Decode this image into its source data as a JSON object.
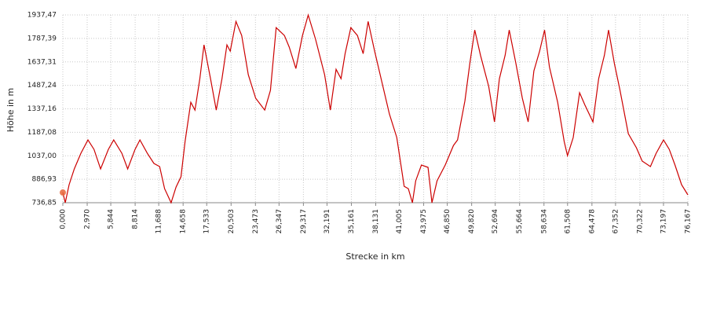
{
  "chart_data": {
    "type": "line",
    "xlabel": "Strecke  in  km",
    "ylabel": "Höhe  in  m",
    "grid": true,
    "xlim": [
      0,
      76.167
    ],
    "ylim": [
      736.85,
      1937.47
    ],
    "xticks": [
      {
        "value": 0,
        "label": "0,000"
      },
      {
        "value": 2.97,
        "label": "2,970"
      },
      {
        "value": 5.844,
        "label": "5,844"
      },
      {
        "value": 8.814,
        "label": "8,814"
      },
      {
        "value": 11.688,
        "label": "11,688"
      },
      {
        "value": 14.658,
        "label": "14,658"
      },
      {
        "value": 17.533,
        "label": "17,533"
      },
      {
        "value": 20.503,
        "label": "20,503"
      },
      {
        "value": 23.473,
        "label": "23,473"
      },
      {
        "value": 26.347,
        "label": "26,347"
      },
      {
        "value": 29.317,
        "label": "29,317"
      },
      {
        "value": 32.191,
        "label": "32,191"
      },
      {
        "value": 35.161,
        "label": "35,161"
      },
      {
        "value": 38.131,
        "label": "38,131"
      },
      {
        "value": 41.005,
        "label": "41,005"
      },
      {
        "value": 43.975,
        "label": "43,975"
      },
      {
        "value": 46.85,
        "label": "46,850"
      },
      {
        "value": 49.82,
        "label": "49,820"
      },
      {
        "value": 52.694,
        "label": "52,694"
      },
      {
        "value": 55.664,
        "label": "55,664"
      },
      {
        "value": 58.634,
        "label": "58,634"
      },
      {
        "value": 61.508,
        "label": "61,508"
      },
      {
        "value": 64.478,
        "label": "64,478"
      },
      {
        "value": 67.352,
        "label": "67,352"
      },
      {
        "value": 70.322,
        "label": "70,322"
      },
      {
        "value": 73.197,
        "label": "73,197"
      },
      {
        "value": 76.167,
        "label": "76,167"
      }
    ],
    "yticks": [
      {
        "value": 736.85,
        "label": "736,85"
      },
      {
        "value": 886.93,
        "label": "886,93"
      },
      {
        "value": 1037.0,
        "label": "1037,00"
      },
      {
        "value": 1187.08,
        "label": "1187,08"
      },
      {
        "value": 1337.16,
        "label": "1337,16"
      },
      {
        "value": 1487.24,
        "label": "1487,24"
      },
      {
        "value": 1637.31,
        "label": "1637,31"
      },
      {
        "value": 1787.39,
        "label": "1787,39"
      },
      {
        "value": 1937.47,
        "label": "1937,47"
      }
    ],
    "x": [
      0,
      0.3,
      0.77,
      1.4,
      2.2,
      3.06,
      3.8,
      4.6,
      5.55,
      6.2,
      7.2,
      7.9,
      8.8,
      9.4,
      10.3,
      11.1,
      11.8,
      12.4,
      13.2,
      13.8,
      14.4,
      14.9,
      15.6,
      16.1,
      16.7,
      17.2,
      18.0,
      18.7,
      19.4,
      20.0,
      20.4,
      21.1,
      21.8,
      22.6,
      23.5,
      24.6,
      25.3,
      26.0,
      27.0,
      27.6,
      28.4,
      29.2,
      29.9,
      30.8,
      31.9,
      32.6,
      33.3,
      33.9,
      34.4,
      35.1,
      35.9,
      36.6,
      37.2,
      38.0,
      38.9,
      39.8,
      40.7,
      41.6,
      42.1,
      42.6,
      43.0,
      43.7,
      44.5,
      44.98,
      45.6,
      46.6,
      47.6,
      48.1,
      49.0,
      49.6,
      50.2,
      50.9,
      51.9,
      52.6,
      53.2,
      53.9,
      54.4,
      55.2,
      56.0,
      56.7,
      57.4,
      58.1,
      58.7,
      59.3,
      60.3,
      61.1,
      61.5,
      62.2,
      62.97,
      63.6,
      64.6,
      65.3,
      66.0,
      66.5,
      67.2,
      67.9,
      68.9,
      69.9,
      70.6,
      71.6,
      72.3,
      73.2,
      73.9,
      74.6,
      75.4,
      76.167
    ],
    "series": [
      {
        "name": "Höhe",
        "color": "#cc0000",
        "values": [
          802,
          737,
          852,
          953,
          1053,
          1138,
          1078,
          953,
          1078,
          1138,
          1053,
          953,
          1078,
          1138,
          1053,
          988,
          968,
          827,
          737,
          837,
          903,
          1128,
          1379,
          1329,
          1530,
          1746,
          1530,
          1329,
          1530,
          1746,
          1706,
          1896,
          1806,
          1555,
          1405,
          1329,
          1455,
          1856,
          1806,
          1731,
          1595,
          1806,
          1937,
          1781,
          1555,
          1329,
          1590,
          1530,
          1690,
          1856,
          1806,
          1690,
          1896,
          1706,
          1505,
          1304,
          1154,
          842,
          827,
          737,
          877,
          978,
          963,
          737,
          877,
          978,
          1103,
          1138,
          1389,
          1630,
          1841,
          1680,
          1480,
          1254,
          1530,
          1680,
          1841,
          1630,
          1405,
          1254,
          1580,
          1706,
          1841,
          1605,
          1379,
          1128,
          1038,
          1154,
          1440,
          1364,
          1254,
          1530,
          1680,
          1841,
          1630,
          1455,
          1179,
          1088,
          1003,
          968,
          1053,
          1138,
          1078,
          978,
          852,
          787
        ]
      }
    ]
  }
}
